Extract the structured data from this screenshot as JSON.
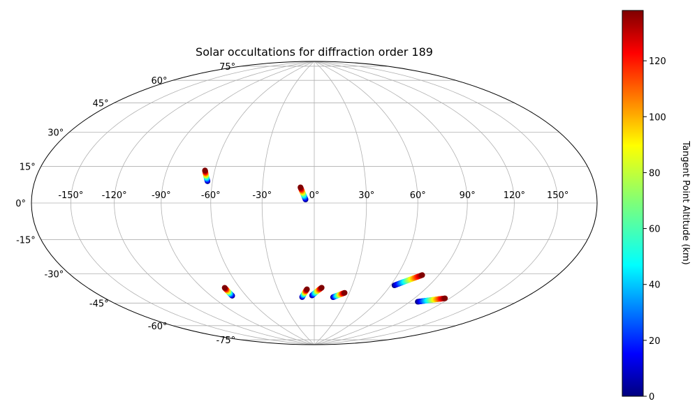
{
  "chart_data": {
    "type": "scatter",
    "title": "Solar occultations for diffraction order 189",
    "projection": "hammer",
    "grid": true,
    "longitude_ticks": [
      -150,
      -120,
      -90,
      -60,
      -30,
      0,
      30,
      60,
      90,
      120,
      150
    ],
    "longitude_tick_labels": [
      "-150°",
      "-120°",
      "-90°",
      "-60°",
      "-30°",
      "0°",
      "30°",
      "60°",
      "90°",
      "120°",
      "150°"
    ],
    "latitude_ticks": [
      75,
      60,
      45,
      30,
      15,
      0,
      -15,
      -30,
      -45,
      -60,
      -75
    ],
    "latitude_tick_labels": [
      "75°",
      "60°",
      "45°",
      "30°",
      "15°",
      "0°",
      "-15°",
      "-30°",
      "-45°",
      "-60°",
      "-75°"
    ],
    "colorbar": {
      "label": "Tangent Point Altitude (km)",
      "range": [
        0,
        138
      ],
      "colormap": "jet",
      "ticks": [
        0,
        20,
        40,
        60,
        80,
        100,
        120
      ],
      "tick_labels": [
        "0",
        "20",
        "40",
        "60",
        "80",
        "100",
        "120"
      ]
    },
    "series": [
      {
        "start": {
          "lon": -63,
          "lat": 12,
          "alt": 0
        },
        "end": {
          "lon": -66,
          "lat": 18,
          "alt": 138
        }
      },
      {
        "start": {
          "lon": -5,
          "lat": 2,
          "alt": 0
        },
        "end": {
          "lon": -8,
          "lat": 9,
          "alt": 138
        }
      },
      {
        "start": {
          "lon": -72,
          "lat": -53,
          "alt": 0
        },
        "end": {
          "lon": -72,
          "lat": -48,
          "alt": 138
        }
      },
      {
        "start": {
          "lon": -11,
          "lat": -56,
          "alt": 0
        },
        "end": {
          "lon": -6,
          "lat": -51,
          "alt": 138
        }
      },
      {
        "start": {
          "lon": -2,
          "lat": -55,
          "alt": 0
        },
        "end": {
          "lon": 6,
          "lat": -50,
          "alt": 138
        }
      },
      {
        "start": {
          "lon": 17,
          "lat": -56,
          "alt": 0
        },
        "end": {
          "lon": 26,
          "lat": -53,
          "alt": 138
        }
      },
      {
        "start": {
          "lon": 63,
          "lat": -47,
          "alt": 0
        },
        "end": {
          "lon": 78,
          "lat": -40,
          "alt": 138
        }
      },
      {
        "start": {
          "lon": 97,
          "lat": -55,
          "alt": 0
        },
        "end": {
          "lon": 116,
          "lat": -51,
          "alt": 138
        }
      }
    ]
  }
}
